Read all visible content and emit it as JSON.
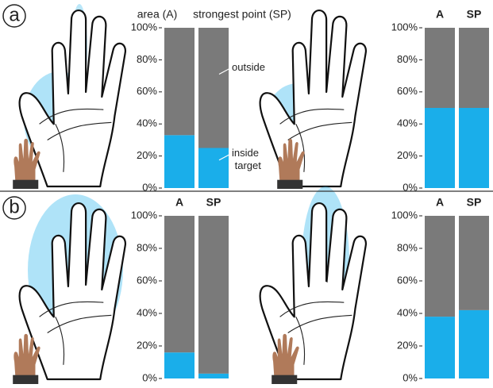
{
  "panel_labels": [
    "a",
    "b"
  ],
  "chart_data": [
    {
      "type": "bar",
      "stacked": true,
      "categories": [
        "area (A)",
        "strongest point (SP)"
      ],
      "series": [
        {
          "name": "inside target",
          "color": "#1aaeea",
          "values": [
            33,
            25
          ]
        },
        {
          "name": "outside",
          "color": "#7a7a7a",
          "values": [
            67,
            75
          ]
        }
      ],
      "ylim": [
        0,
        100
      ],
      "yticks": [
        {
          "value": 0,
          "label": "0%"
        },
        {
          "value": 20,
          "label": "20%"
        },
        {
          "value": 40,
          "label": "40%"
        },
        {
          "value": 60,
          "label": "60%"
        },
        {
          "value": 80,
          "label": "80%"
        },
        {
          "value": 100,
          "label": "100%"
        }
      ]
    },
    {
      "type": "bar",
      "stacked": true,
      "categories": [
        "A",
        "SP"
      ],
      "series": [
        {
          "color": "#1aaeea",
          "values": [
            50,
            50
          ]
        },
        {
          "color": "#7a7a7a",
          "values": [
            50,
            50
          ]
        }
      ],
      "ylim": [
        0,
        100
      ],
      "yticks": [
        {
          "value": 0,
          "label": "0%"
        },
        {
          "value": 20,
          "label": "20%"
        },
        {
          "value": 40,
          "label": "40%"
        },
        {
          "value": 60,
          "label": "60%"
        },
        {
          "value": 80,
          "label": "80%"
        },
        {
          "value": 100,
          "label": "100%"
        }
      ]
    },
    {
      "type": "bar",
      "stacked": true,
      "categories": [
        "A",
        "SP"
      ],
      "series": [
        {
          "color": "#1aaeea",
          "values": [
            16,
            3
          ]
        },
        {
          "color": "#7a7a7a",
          "values": [
            84,
            97
          ]
        }
      ],
      "ylim": [
        0,
        100
      ],
      "yticks": [
        {
          "value": 0,
          "label": "0%"
        },
        {
          "value": 20,
          "label": "20%"
        },
        {
          "value": 40,
          "label": "40%"
        },
        {
          "value": 60,
          "label": "60%"
        },
        {
          "value": 80,
          "label": "80%"
        },
        {
          "value": 100,
          "label": "100%"
        }
      ]
    },
    {
      "type": "bar",
      "stacked": true,
      "categories": [
        "A",
        "SP"
      ],
      "series": [
        {
          "color": "#1aaeea",
          "values": [
            38,
            42
          ]
        },
        {
          "color": "#7a7a7a",
          "values": [
            62,
            58
          ]
        }
      ],
      "ylim": [
        0,
        100
      ],
      "yticks": [
        {
          "value": 0,
          "label": "0%"
        },
        {
          "value": 20,
          "label": "20%"
        },
        {
          "value": 40,
          "label": "40%"
        },
        {
          "value": 60,
          "label": "60%"
        },
        {
          "value": 80,
          "label": "80%"
        },
        {
          "value": 100,
          "label": "100%"
        }
      ]
    }
  ]
}
